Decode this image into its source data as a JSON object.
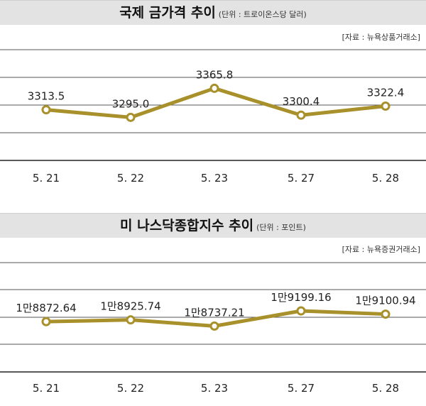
{
  "chart_data": [
    {
      "type": "line",
      "title": "국제 금가격 추이",
      "unit_note": "(단위 : 트로이온스당 달러)",
      "source": "[자료 : 뉴욕상품거래소]",
      "categories": [
        "5. 21",
        "5. 22",
        "5. 23",
        "5. 27",
        "5. 28"
      ],
      "values": [
        3313.5,
        3295.0,
        3365.8,
        3300.4,
        3322.4
      ],
      "value_labels": [
        "3313.5",
        "3295.0",
        "3365.8",
        "3300.4",
        "3322.4"
      ],
      "ylim": [
        3190,
        3460
      ],
      "grid": true,
      "line_color": "#a8902a"
    },
    {
      "type": "line",
      "title": "미 나스닥종합지수 추이",
      "unit_note": "(단위 : 포인트)",
      "source": "[자료 : 뉴욕증권거래소]",
      "categories": [
        "5. 21",
        "5. 22",
        "5. 23",
        "5. 27",
        "5. 28"
      ],
      "values": [
        18872.64,
        18925.74,
        18737.21,
        19199.16,
        19100.94
      ],
      "value_labels": [
        "1만8872.64",
        "1만8925.74",
        "1만8737.21",
        "1만9199.16",
        "1만9100.94"
      ],
      "ylim": [
        17340,
        20670
      ],
      "grid": true,
      "line_color": "#a8902a"
    }
  ]
}
